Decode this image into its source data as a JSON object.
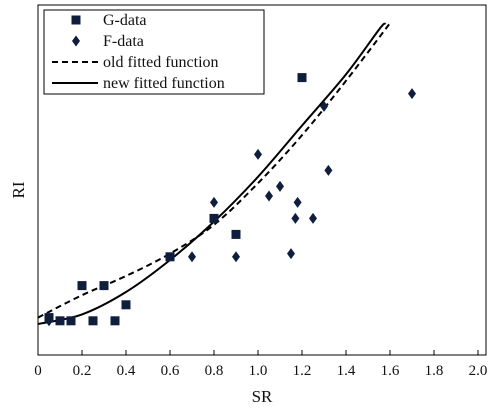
{
  "chart_data": {
    "type": "scatter",
    "xlabel": "SR",
    "ylabel": "RI",
    "xlim": [
      0,
      2.0
    ],
    "ylim": [
      0,
      1
    ],
    "x_ticks": [
      0,
      0.2,
      0.4,
      0.6,
      0.8,
      1.0,
      1.2,
      1.4,
      1.6,
      1.8,
      2.0
    ],
    "x_tick_labels": [
      "0",
      "0.2",
      "0.4",
      "0.6",
      "0.8",
      "1.0",
      "1.2",
      "1.4",
      "1.6",
      "1.8",
      "2.0"
    ],
    "y_tick_labels_shown": false,
    "grid": false,
    "legend_position": "top-left",
    "series": [
      {
        "name": "G-data",
        "kind": "markers",
        "marker": "square",
        "points": [
          [
            0.05,
            0.07
          ],
          [
            0.1,
            0.06
          ],
          [
            0.15,
            0.06
          ],
          [
            0.2,
            0.17
          ],
          [
            0.25,
            0.06
          ],
          [
            0.3,
            0.17
          ],
          [
            0.35,
            0.06
          ],
          [
            0.4,
            0.11
          ],
          [
            0.6,
            0.26
          ],
          [
            0.8,
            0.38
          ],
          [
            0.9,
            0.33
          ],
          [
            1.2,
            0.82
          ]
        ]
      },
      {
        "name": "F-data",
        "kind": "markers",
        "marker": "diamond",
        "points": [
          [
            0.05,
            0.06
          ],
          [
            0.7,
            0.26
          ],
          [
            0.8,
            0.43
          ],
          [
            0.9,
            0.26
          ],
          [
            1.0,
            0.58
          ],
          [
            1.05,
            0.45
          ],
          [
            1.1,
            0.48
          ],
          [
            1.15,
            0.27
          ],
          [
            1.17,
            0.38
          ],
          [
            1.18,
            0.43
          ],
          [
            1.25,
            0.38
          ],
          [
            1.3,
            0.73
          ],
          [
            1.32,
            0.53
          ],
          [
            1.7,
            0.77
          ]
        ]
      },
      {
        "name": "old fitted function",
        "kind": "line",
        "dash": "dashed",
        "points": [
          [
            0,
            0.07
          ],
          [
            0.2,
            0.14
          ],
          [
            0.4,
            0.2
          ],
          [
            0.6,
            0.27
          ],
          [
            0.8,
            0.36
          ],
          [
            1.0,
            0.49
          ],
          [
            1.2,
            0.64
          ],
          [
            1.4,
            0.81
          ],
          [
            1.6,
            0.99
          ]
        ]
      },
      {
        "name": "new fitted function",
        "kind": "line",
        "dash": "solid",
        "points": [
          [
            0,
            0.05
          ],
          [
            0.2,
            0.08
          ],
          [
            0.4,
            0.15
          ],
          [
            0.6,
            0.25
          ],
          [
            0.8,
            0.37
          ],
          [
            1.0,
            0.51
          ],
          [
            1.2,
            0.67
          ],
          [
            1.4,
            0.83
          ],
          [
            1.55,
            0.97
          ],
          [
            1.58,
            0.99
          ]
        ]
      }
    ],
    "colors": {
      "markers": "#0f1e3c",
      "lines": "#000000"
    }
  }
}
